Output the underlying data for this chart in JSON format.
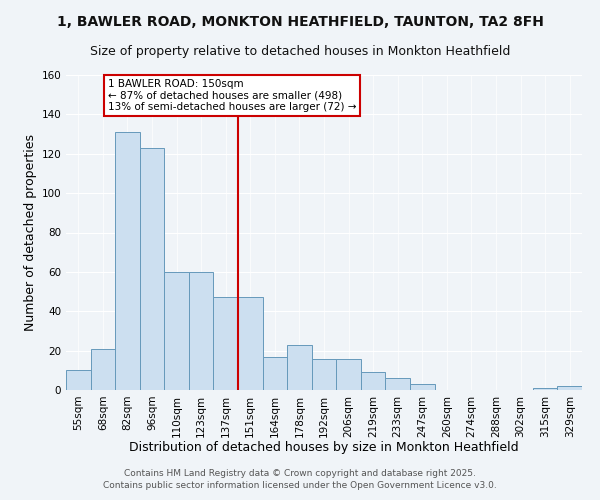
{
  "title1": "1, BAWLER ROAD, MONKTON HEATHFIELD, TAUNTON, TA2 8FH",
  "title2": "Size of property relative to detached houses in Monkton Heathfield",
  "xlabel": "Distribution of detached houses by size in Monkton Heathfield",
  "ylabel": "Number of detached properties",
  "categories": [
    "55sqm",
    "68sqm",
    "82sqm",
    "96sqm",
    "110sqm",
    "123sqm",
    "137sqm",
    "151sqm",
    "164sqm",
    "178sqm",
    "192sqm",
    "206sqm",
    "219sqm",
    "233sqm",
    "247sqm",
    "260sqm",
    "274sqm",
    "288sqm",
    "302sqm",
    "315sqm",
    "329sqm"
  ],
  "values": [
    10,
    21,
    131,
    123,
    60,
    60,
    47,
    47,
    17,
    23,
    16,
    16,
    9,
    6,
    3,
    0,
    0,
    0,
    0,
    1,
    2
  ],
  "bar_color": "#ccdff0",
  "bar_edge_color": "#6699bb",
  "property_line_label": "1 BAWLER ROAD: 150sqm",
  "annotation_line1": "← 87% of detached houses are smaller (498)",
  "annotation_line2": "13% of semi-detached houses are larger (72) →",
  "annotation_box_edge": "#cc0000",
  "property_line_color": "#cc0000",
  "footer1": "Contains HM Land Registry data © Crown copyright and database right 2025.",
  "footer2": "Contains public sector information licensed under the Open Government Licence v3.0.",
  "ylim": [
    0,
    160
  ],
  "yticks": [
    0,
    20,
    40,
    60,
    80,
    100,
    120,
    140,
    160
  ],
  "background_color": "#f0f4f8",
  "grid_color": "#ffffff",
  "title_fontsize": 10,
  "subtitle_fontsize": 9,
  "axis_label_fontsize": 9,
  "tick_fontsize": 7.5,
  "footer_fontsize": 6.5,
  "annotation_fontsize": 7.5
}
